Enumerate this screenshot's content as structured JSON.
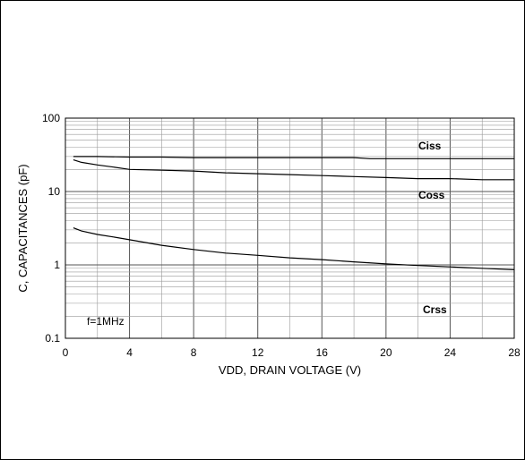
{
  "chart_data": {
    "type": "line",
    "title": "",
    "xlabel": "VDD, DRAIN VOLTAGE (V)",
    "ylabel": "C, CAPACITANCES (pF)",
    "xlim": [
      0,
      28
    ],
    "ylim": [
      0.1,
      100
    ],
    "yscale": "log",
    "grid": true,
    "x_ticks": [
      "0",
      "4",
      "8",
      "12",
      "16",
      "20",
      "24",
      "28"
    ],
    "y_ticks": [
      "0.1",
      "1",
      "10",
      "100"
    ],
    "annotation": "f=1MHz",
    "series": [
      {
        "name": "Ciss",
        "x": [
          0.5,
          2,
          4,
          6,
          8,
          10,
          12,
          14,
          16,
          18,
          19,
          20,
          22,
          24,
          26,
          28
        ],
        "y": [
          30,
          30,
          29.5,
          29.5,
          29,
          29,
          29,
          29,
          29,
          29,
          28,
          28,
          28,
          28,
          28,
          28
        ]
      },
      {
        "name": "Coss",
        "x": [
          0.5,
          1,
          2,
          3,
          4,
          6,
          8,
          10,
          12,
          14,
          16,
          18,
          20,
          22,
          24,
          26,
          28
        ],
        "y": [
          27,
          25,
          23,
          21.5,
          20,
          19.5,
          19,
          18,
          17.5,
          17,
          16.5,
          16,
          15.5,
          15,
          15,
          14.5,
          14.5
        ]
      },
      {
        "name": "Crss",
        "x": [
          0.5,
          1,
          2,
          3,
          4,
          6,
          8,
          10,
          12,
          14,
          16,
          18,
          20,
          22,
          24,
          26,
          28
        ],
        "y": [
          3.2,
          2.9,
          2.6,
          2.4,
          2.2,
          1.85,
          1.62,
          1.45,
          1.35,
          1.25,
          1.18,
          1.1,
          1.03,
          0.98,
          0.94,
          0.9,
          0.86
        ]
      }
    ]
  }
}
